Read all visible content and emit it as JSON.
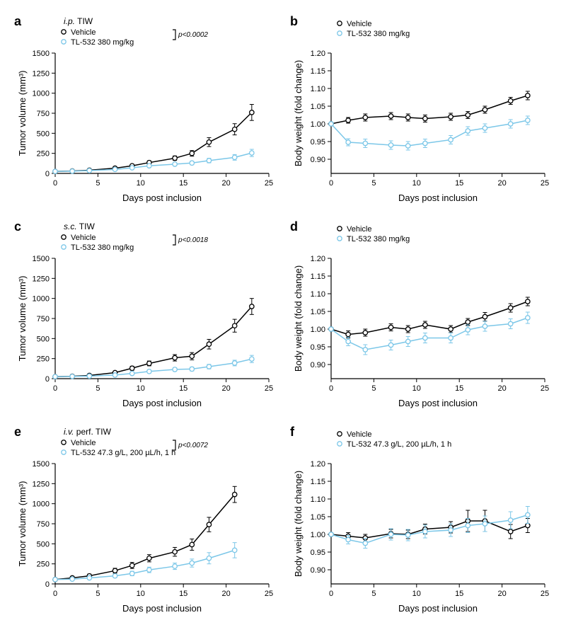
{
  "colors": {
    "vehicle": "#000000",
    "treatment": "#7cc7e8",
    "background": "#ffffff"
  },
  "marker_radius": 3.2,
  "line_width": 1.5,
  "error_cap": 3,
  "panels": [
    {
      "id": "a",
      "type": "line",
      "title_prefix_italic": "i.p.",
      "title_rest": " TIW",
      "legend": {
        "vehicle": "Vehicle",
        "treatment": "TL-532 380 mg/kg"
      },
      "pvalue": "p<0.0002",
      "xlabel": "Days post inclusion",
      "ylabel": "Tumor volume (mm³)",
      "xlim": [
        0,
        25
      ],
      "xticks": [
        0,
        5,
        10,
        15,
        20,
        25
      ],
      "ylim": [
        0,
        1500
      ],
      "yticks": [
        0,
        250,
        500,
        750,
        1000,
        1250,
        1500
      ],
      "x": [
        0,
        2,
        4,
        7,
        9,
        11,
        14,
        16,
        18,
        21,
        23
      ],
      "series": {
        "vehicle": {
          "y": [
            25,
            30,
            40,
            65,
            95,
            135,
            190,
            250,
            390,
            550,
            760
          ],
          "e": [
            10,
            10,
            12,
            15,
            18,
            22,
            28,
            35,
            55,
            70,
            100
          ]
        },
        "treatment": {
          "y": [
            25,
            28,
            35,
            50,
            70,
            95,
            115,
            130,
            160,
            200,
            255
          ],
          "e": [
            8,
            8,
            10,
            12,
            14,
            16,
            18,
            22,
            28,
            35,
            45
          ]
        }
      }
    },
    {
      "id": "b",
      "type": "line",
      "title_prefix_italic": "",
      "title_rest": "",
      "legend": {
        "vehicle": "Vehicle",
        "treatment": "TL-532 380 mg/kg"
      },
      "pvalue": "",
      "xlabel": "Days post inclusion",
      "ylabel": "Body weight (fold change)",
      "xlim": [
        0,
        25
      ],
      "xticks": [
        0,
        5,
        10,
        15,
        20,
        25
      ],
      "ylim": [
        0.86,
        1.2
      ],
      "yticks": [
        0.9,
        0.95,
        1.0,
        1.05,
        1.1,
        1.15,
        1.2
      ],
      "x": [
        0,
        2,
        4,
        7,
        9,
        11,
        14,
        16,
        18,
        21,
        23
      ],
      "series": {
        "vehicle": {
          "y": [
            1.0,
            1.01,
            1.018,
            1.022,
            1.018,
            1.015,
            1.02,
            1.025,
            1.04,
            1.065,
            1.08
          ],
          "e": [
            0.005,
            0.008,
            0.01,
            0.01,
            0.01,
            0.01,
            0.01,
            0.01,
            0.01,
            0.01,
            0.012
          ]
        },
        "treatment": {
          "y": [
            1.0,
            0.948,
            0.945,
            0.94,
            0.938,
            0.945,
            0.955,
            0.98,
            0.988,
            1.0,
            1.01
          ],
          "e": [
            0.005,
            0.01,
            0.012,
            0.012,
            0.012,
            0.012,
            0.012,
            0.012,
            0.012,
            0.012,
            0.012
          ]
        }
      }
    },
    {
      "id": "c",
      "type": "line",
      "title_prefix_italic": "s.c.",
      "title_rest": " TIW",
      "legend": {
        "vehicle": "Vehicle",
        "treatment": "TL-532 380 mg/kg"
      },
      "pvalue": "p<0.0018",
      "xlabel": "Days post inclusion",
      "ylabel": "Tumor volume (mm³)",
      "xlim": [
        0,
        25
      ],
      "xticks": [
        0,
        5,
        10,
        15,
        20,
        25
      ],
      "ylim": [
        0,
        1500
      ],
      "yticks": [
        0,
        250,
        500,
        750,
        1000,
        1250,
        1500
      ],
      "x": [
        0,
        2,
        4,
        7,
        9,
        11,
        14,
        16,
        18,
        21,
        23
      ],
      "series": {
        "vehicle": {
          "y": [
            25,
            30,
            40,
            75,
            130,
            190,
            260,
            280,
            430,
            660,
            900
          ],
          "e": [
            10,
            10,
            12,
            18,
            25,
            30,
            40,
            45,
            60,
            80,
            100
          ]
        },
        "treatment": {
          "y": [
            25,
            28,
            32,
            45,
            65,
            90,
            115,
            120,
            150,
            195,
            245
          ],
          "e": [
            8,
            8,
            10,
            12,
            16,
            20,
            22,
            24,
            28,
            35,
            45
          ]
        }
      }
    },
    {
      "id": "d",
      "type": "line",
      "title_prefix_italic": "",
      "title_rest": "",
      "legend": {
        "vehicle": "Vehicle",
        "treatment": "TL-532 380 mg/kg"
      },
      "pvalue": "",
      "xlabel": "Days post inclusion",
      "ylabel": "Body weight (fold change)",
      "xlim": [
        0,
        25
      ],
      "xticks": [
        0,
        5,
        10,
        15,
        20,
        25
      ],
      "ylim": [
        0.86,
        1.2
      ],
      "yticks": [
        0.9,
        0.95,
        1.0,
        1.05,
        1.1,
        1.15,
        1.2
      ],
      "x": [
        0,
        2,
        4,
        7,
        9,
        11,
        14,
        16,
        18,
        21,
        23
      ],
      "series": {
        "vehicle": {
          "y": [
            1.0,
            0.985,
            0.99,
            1.005,
            1.0,
            1.012,
            1.0,
            1.02,
            1.035,
            1.06,
            1.078
          ],
          "e": [
            0.005,
            0.01,
            0.01,
            0.01,
            0.01,
            0.01,
            0.01,
            0.01,
            0.012,
            0.012,
            0.012
          ]
        },
        "treatment": {
          "y": [
            1.0,
            0.965,
            0.942,
            0.955,
            0.965,
            0.975,
            0.975,
            0.998,
            1.008,
            1.015,
            1.032
          ],
          "e": [
            0.005,
            0.012,
            0.014,
            0.014,
            0.014,
            0.014,
            0.014,
            0.014,
            0.014,
            0.014,
            0.016
          ]
        }
      }
    },
    {
      "id": "e",
      "type": "line",
      "title_prefix_italic": "i.v.",
      "title_rest": " perf. TIW",
      "legend": {
        "vehicle": "Vehicle",
        "treatment": "TL-532 47.3 g/L, 200 µL/h, 1 h"
      },
      "pvalue": "p<0.0072",
      "xlabel": "Days post inclusion",
      "ylabel": "Tumor volume (mm³)",
      "xlim": [
        0,
        25
      ],
      "xticks": [
        0,
        5,
        10,
        15,
        20,
        25
      ],
      "ylim": [
        0,
        1500
      ],
      "yticks": [
        0,
        250,
        500,
        750,
        1000,
        1250,
        1500
      ],
      "x": [
        0,
        2,
        4,
        7,
        9,
        11,
        14,
        16,
        18,
        21,
        23
      ],
      "series": {
        "vehicle": {
          "y": [
            55,
            75,
            100,
            165,
            230,
            320,
            400,
            490,
            740,
            1115,
            1115
          ],
          "e": [
            15,
            18,
            22,
            30,
            38,
            45,
            55,
            70,
            90,
            100,
            100
          ]
        },
        "treatment": {
          "y": [
            55,
            60,
            75,
            100,
            130,
            175,
            220,
            260,
            320,
            420,
            420
          ],
          "e": [
            12,
            14,
            18,
            22,
            28,
            34,
            40,
            50,
            70,
            95,
            95
          ]
        }
      },
      "x_last_omit": true
    },
    {
      "id": "f",
      "type": "line",
      "title_prefix_italic": "",
      "title_rest": "",
      "legend": {
        "vehicle": "Vehicle",
        "treatment": "TL-532 47.3 g/L, 200 µL/h, 1 h"
      },
      "pvalue": "",
      "xlabel": "Days post inclusion",
      "ylabel": "Body weight (fold change)",
      "xlim": [
        0,
        25
      ],
      "xticks": [
        0,
        5,
        10,
        15,
        20,
        25
      ],
      "ylim": [
        0.86,
        1.2
      ],
      "yticks": [
        0.9,
        0.95,
        1.0,
        1.05,
        1.1,
        1.15,
        1.2
      ],
      "x": [
        0,
        2,
        4,
        7,
        9,
        11,
        14,
        16,
        18,
        21,
        23
      ],
      "series": {
        "vehicle": {
          "y": [
            1.0,
            0.995,
            0.99,
            1.002,
            1.0,
            1.015,
            1.02,
            1.038,
            1.038,
            1.008,
            1.025
          ],
          "e": [
            0.005,
            0.01,
            0.01,
            0.012,
            0.012,
            0.014,
            0.016,
            0.03,
            0.03,
            0.02,
            0.02
          ]
        },
        "treatment": {
          "y": [
            1.0,
            0.985,
            0.975,
            1.0,
            0.998,
            1.008,
            1.012,
            1.025,
            1.03,
            1.04,
            1.055
          ],
          "e": [
            0.005,
            0.012,
            0.014,
            0.016,
            0.016,
            0.018,
            0.018,
            0.02,
            0.022,
            0.024,
            0.024
          ]
        }
      }
    }
  ]
}
